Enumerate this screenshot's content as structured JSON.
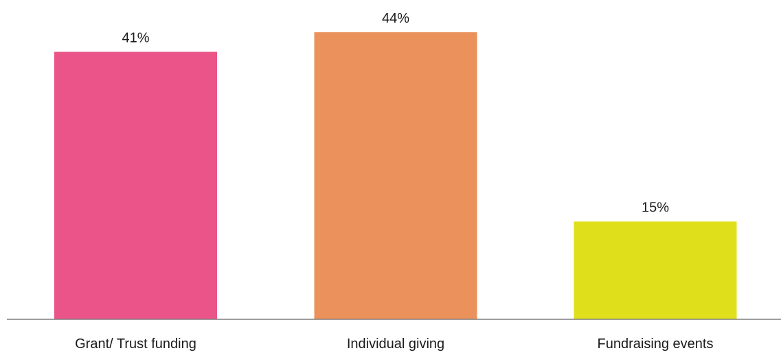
{
  "chart_data": {
    "type": "bar",
    "categories": [
      "Grant/ Trust funding",
      "Individual giving",
      "Fundraising events"
    ],
    "values": [
      41,
      44,
      15
    ],
    "value_labels": [
      "41%",
      "44%",
      "15%"
    ],
    "colors": [
      "#EA5489",
      "#EB915C",
      "#DFE01B"
    ],
    "title": "",
    "xlabel": "",
    "ylabel": "",
    "ylim": [
      0,
      46
    ],
    "grid": false,
    "legend": "none"
  }
}
